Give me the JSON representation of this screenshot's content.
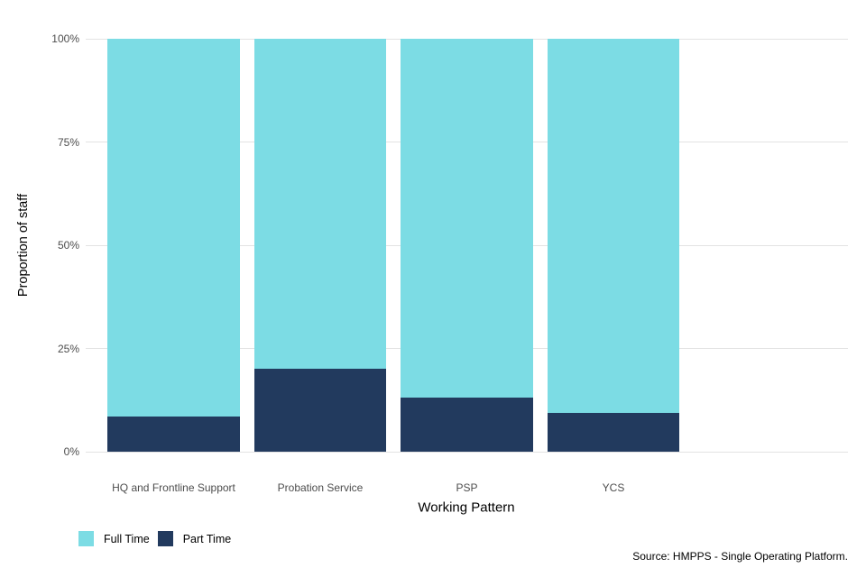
{
  "chart_data": {
    "type": "bar",
    "stacked": true,
    "title": "",
    "xlabel": "Working Pattern",
    "ylabel": "Proportion of staff",
    "categories": [
      "HQ and Frontline Support",
      "Probation Service",
      "PSP",
      "YCS"
    ],
    "series": [
      {
        "name": "Full Time",
        "color": "#7cdce4",
        "values": [
          91.5,
          80.0,
          87.0,
          90.7
        ]
      },
      {
        "name": "Part Time",
        "color": "#223a5e",
        "values": [
          8.5,
          20.0,
          13.0,
          9.3
        ]
      }
    ],
    "ylim": [
      0,
      100
    ],
    "yticks": [
      0,
      25,
      50,
      75,
      100
    ],
    "ytick_suffix": "%",
    "grid": "horizontal-major-only",
    "gridline_color": "#e3e3e3",
    "tick_label_color": "#4d4d4d",
    "background": "#ffffff",
    "legend_position": "bottom-left"
  },
  "source": {
    "caption": "Source: HMPPS - Single Operating Platform."
  }
}
